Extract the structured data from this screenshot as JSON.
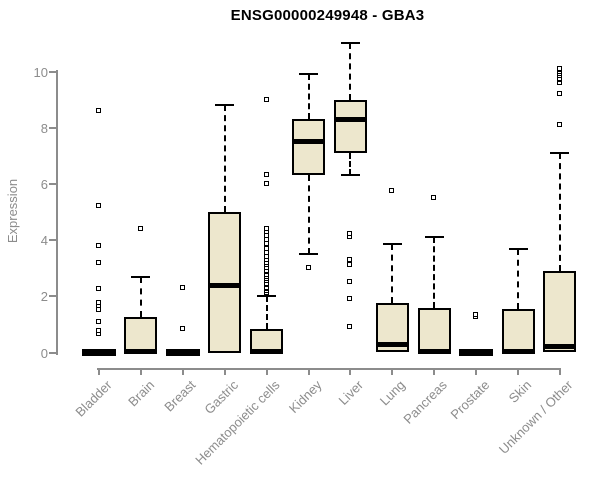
{
  "chart_data": {
    "type": "boxplot",
    "title": "ENSG00000249948 - GBA3",
    "xlabel": "",
    "ylabel": "Expression",
    "ylim": [
      0,
      11
    ],
    "yticks": [
      0,
      2,
      4,
      6,
      8,
      10
    ],
    "grid": false,
    "legend": "none",
    "categories": [
      "Bladder",
      "Brain",
      "Breast",
      "Gastric",
      "Hematopoietic cells",
      "Kidney",
      "Liver",
      "Lung",
      "Pancreas",
      "Prostate",
      "Skin",
      "Unknown / Other"
    ],
    "boxes": [
      {
        "category": "Bladder",
        "whisker_low": 0,
        "q1": 0,
        "median": 0,
        "q3": 0,
        "whisker_high": 0,
        "outliers": [
          0.65,
          0.75,
          1.1,
          1.5,
          1.65,
          1.75,
          2.25,
          3.2,
          3.8,
          5.2,
          8.6
        ]
      },
      {
        "category": "Brain",
        "whisker_low": 0,
        "q1": 0,
        "median": 0.05,
        "q3": 1.25,
        "whisker_high": 2.7,
        "outliers": [
          4.4
        ]
      },
      {
        "category": "Breast",
        "whisker_low": 0,
        "q1": 0,
        "median": 0,
        "q3": 0,
        "whisker_high": 0,
        "outliers": [
          0.85,
          2.3
        ]
      },
      {
        "category": "Gastric",
        "whisker_low": 0,
        "q1": 0,
        "median": 2.4,
        "q3": 5.0,
        "whisker_high": 8.8,
        "outliers": []
      },
      {
        "category": "Hematopoietic cells",
        "whisker_low": 0,
        "q1": 0,
        "median": 0.05,
        "q3": 0.85,
        "whisker_high": 2.0,
        "outliers": [
          2.1,
          2.2,
          2.25,
          2.3,
          2.4,
          2.45,
          2.55,
          2.6,
          2.7,
          2.75,
          2.85,
          2.9,
          3.0,
          3.1,
          3.2,
          3.3,
          3.4,
          3.55,
          3.7,
          3.85,
          4.0,
          4.15,
          4.3,
          4.4,
          6.0,
          6.3,
          9.0
        ]
      },
      {
        "category": "Kidney",
        "whisker_low": 3.5,
        "q1": 6.3,
        "median": 7.5,
        "q3": 8.3,
        "whisker_high": 9.9,
        "outliers": [
          3.0
        ]
      },
      {
        "category": "Liver",
        "whisker_low": 6.3,
        "q1": 7.1,
        "median": 8.3,
        "q3": 9.0,
        "whisker_high": 11.0,
        "outliers": [
          0.9,
          1.9,
          2.5,
          3.1,
          3.3,
          4.1,
          4.2
        ]
      },
      {
        "category": "Lung",
        "whisker_low": 0,
        "q1": 0,
        "median": 0.3,
        "q3": 1.75,
        "whisker_high": 3.85,
        "outliers": [
          5.75
        ]
      },
      {
        "category": "Pancreas",
        "whisker_low": 0,
        "q1": 0,
        "median": 0.05,
        "q3": 1.6,
        "whisker_high": 4.1,
        "outliers": [
          5.5
        ]
      },
      {
        "category": "Prostate",
        "whisker_low": 0,
        "q1": 0,
        "median": 0,
        "q3": 0,
        "whisker_high": 0,
        "outliers": [
          1.25,
          1.35
        ]
      },
      {
        "category": "Skin",
        "whisker_low": 0,
        "q1": 0,
        "median": 0.05,
        "q3": 1.55,
        "whisker_high": 3.7,
        "outliers": []
      },
      {
        "category": "Unknown / Other",
        "whisker_low": 0,
        "q1": 0,
        "median": 0.2,
        "q3": 2.9,
        "whisker_high": 7.1,
        "outliers": [
          8.1,
          9.2,
          9.6,
          9.7,
          9.75,
          9.85,
          9.9,
          10.0,
          10.05,
          10.1
        ]
      }
    ]
  },
  "colors": {
    "box_fill": "#EDE7CD",
    "box_border": "#000000",
    "median": "#000000",
    "axis": "#8C8C8C",
    "tick_text": "#8C8C8C",
    "title_text": "#000000",
    "background": "#FFFFFF"
  }
}
